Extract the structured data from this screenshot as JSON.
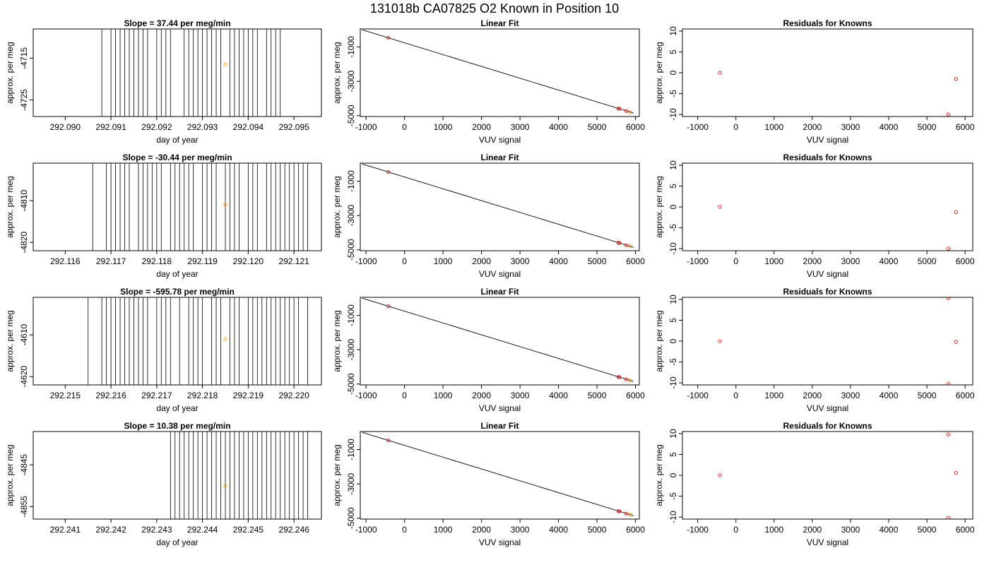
{
  "page_title": "131018b     CA07825   O2 Known in Position  10",
  "chart_data": [
    {
      "type": "line",
      "title": "Slope =  37.44  per meg/min",
      "xlabel": "day of year",
      "ylabel": "approx. per meg",
      "xlim": [
        292.0893,
        292.0956
      ],
      "ylim": [
        -4729,
        -4708
      ],
      "xticks": [
        "292.090",
        "292.091",
        "292.092",
        "292.093",
        "292.094",
        "292.095"
      ],
      "xtick_values": [
        292.09,
        292.091,
        292.092,
        292.093,
        292.094,
        292.095
      ],
      "yticks": [
        "-4725",
        "-4715"
      ],
      "ytick_values": [
        -4725,
        -4715
      ],
      "spikes_x": [
        292.0908,
        292.091,
        292.0911,
        292.0912,
        292.0913,
        292.0914,
        292.0915,
        292.0916,
        292.0917,
        292.0918,
        292.092,
        292.0921,
        292.0922,
        292.0923,
        292.0926,
        292.0927,
        292.0928,
        292.0929,
        292.093,
        292.0931,
        292.0932,
        292.0933,
        292.0934,
        292.0936,
        292.0937,
        292.0938,
        292.0939,
        292.094,
        292.0941,
        292.0942,
        292.0944,
        292.0945,
        292.0946,
        292.0947
      ],
      "points": [
        {
          "x": 292.0935,
          "y": -4716.5
        }
      ]
    },
    {
      "type": "scatter",
      "title": "Linear Fit",
      "xlabel": "VUV signal",
      "ylabel": "approx. per meg",
      "xlim": [
        -1150,
        6100
      ],
      "ylim": [
        -5050,
        50
      ],
      "xticks": [
        "-1000",
        "0",
        "1000",
        "2000",
        "3000",
        "4000",
        "5000",
        "6000"
      ],
      "xtick_values": [
        -1000,
        0,
        1000,
        2000,
        3000,
        4000,
        5000,
        6000
      ],
      "yticks": [
        "-5000",
        "-3000",
        "-1000"
      ],
      "ytick_values": [
        -5000,
        -3000,
        -1000
      ],
      "fit_line": [
        [
          -1100,
          0
        ],
        [
          5950,
          -4850
        ]
      ],
      "points": [
        {
          "x": -420,
          "y": -470
        },
        {
          "x": 5560,
          "y": -4590
        },
        {
          "x": 5580,
          "y": -4600
        },
        {
          "x": 5760,
          "y": -4730
        },
        {
          "x": 5860,
          "y": -4800
        }
      ]
    },
    {
      "type": "scatter",
      "title": "Residuals for Knowns",
      "xlabel": "VUV signal",
      "ylabel": "approx. per meg",
      "xlim": [
        -1400,
        6200
      ],
      "ylim": [
        -10.5,
        10.5
      ],
      "xticks": [
        "-1000",
        "0",
        "1000",
        "2000",
        "3000",
        "4000",
        "5000",
        "6000"
      ],
      "xtick_values": [
        -1000,
        0,
        1000,
        2000,
        3000,
        4000,
        5000,
        6000
      ],
      "yticks": [
        "-10",
        "-5",
        "0",
        "5",
        "10"
      ],
      "ytick_values": [
        -10,
        -5,
        0,
        5,
        10
      ],
      "points": [
        {
          "x": -420,
          "y": 0
        },
        {
          "x": 5560,
          "y": -10
        },
        {
          "x": 5760,
          "y": -1.5
        }
      ]
    },
    {
      "type": "line",
      "title": "Slope =  -30.44  per meg/min",
      "xlabel": "day of year",
      "ylabel": "approx. per meg",
      "xlim": [
        292.1153,
        292.1216
      ],
      "ylim": [
        -4822,
        -4801
      ],
      "xticks": [
        "292.116",
        "292.117",
        "292.118",
        "292.119",
        "292.120",
        "292.121"
      ],
      "xtick_values": [
        292.116,
        292.117,
        292.118,
        292.119,
        292.12,
        292.121
      ],
      "yticks": [
        "-4820",
        "-4810"
      ],
      "ytick_values": [
        -4820,
        -4810
      ],
      "spikes_x": [
        292.1166,
        292.1169,
        292.117,
        292.1171,
        292.1172,
        292.1173,
        292.1174,
        292.1176,
        292.1177,
        292.1178,
        292.1179,
        292.118,
        292.1181,
        292.1183,
        292.1184,
        292.1185,
        292.1186,
        292.1187,
        292.1188,
        292.119,
        292.1191,
        292.1192,
        292.1193,
        292.1195,
        292.1196,
        292.1197,
        292.1198,
        292.12,
        292.1201,
        292.1202,
        292.1204,
        292.1205,
        292.1206,
        292.1207,
        292.1208,
        292.1209,
        292.121,
        292.1211,
        292.1212,
        292.1213
      ],
      "points": [
        {
          "x": 292.1195,
          "y": -4811
        }
      ]
    },
    {
      "type": "scatter",
      "title": "Linear Fit",
      "xlabel": "VUV signal",
      "ylabel": "approx. per meg",
      "xlim": [
        -1150,
        6100
      ],
      "ylim": [
        -5050,
        50
      ],
      "xticks": [
        "-1000",
        "0",
        "1000",
        "2000",
        "3000",
        "4000",
        "5000",
        "6000"
      ],
      "xtick_values": [
        -1000,
        0,
        1000,
        2000,
        3000,
        4000,
        5000,
        6000
      ],
      "yticks": [
        "-5000",
        "-3000",
        "-1000"
      ],
      "ytick_values": [
        -5000,
        -3000,
        -1000
      ],
      "fit_line": [
        [
          -1100,
          0
        ],
        [
          5950,
          -4850
        ]
      ],
      "points": [
        {
          "x": -420,
          "y": -470
        },
        {
          "x": 5560,
          "y": -4590
        },
        {
          "x": 5580,
          "y": -4600
        },
        {
          "x": 5760,
          "y": -4730
        },
        {
          "x": 5860,
          "y": -4800
        }
      ]
    },
    {
      "type": "scatter",
      "title": "Residuals for Knowns",
      "xlabel": "VUV signal",
      "ylabel": "approx. per meg",
      "xlim": [
        -1400,
        6200
      ],
      "ylim": [
        -10.5,
        10.5
      ],
      "xticks": [
        "-1000",
        "0",
        "1000",
        "2000",
        "3000",
        "4000",
        "5000",
        "6000"
      ],
      "xtick_values": [
        -1000,
        0,
        1000,
        2000,
        3000,
        4000,
        5000,
        6000
      ],
      "yticks": [
        "-10",
        "-5",
        "0",
        "5",
        "10"
      ],
      "ytick_values": [
        -10,
        -5,
        0,
        5,
        10
      ],
      "points": [
        {
          "x": -420,
          "y": 0
        },
        {
          "x": 5560,
          "y": -10
        },
        {
          "x": 5760,
          "y": -1.3
        }
      ]
    },
    {
      "type": "line",
      "title": "Slope =  -595.78  per meg/min",
      "xlabel": "day of year",
      "ylabel": "approx. per meg",
      "xlim": [
        292.2143,
        292.2206
      ],
      "ylim": [
        -4622,
        -4601
      ],
      "xticks": [
        "292.215",
        "292.216",
        "292.217",
        "292.218",
        "292.219",
        "292.220"
      ],
      "xtick_values": [
        292.215,
        292.216,
        292.217,
        292.218,
        292.219,
        292.22
      ],
      "yticks": [
        "-4620",
        "-4610"
      ],
      "ytick_values": [
        -4620,
        -4610
      ],
      "spikes_x": [
        292.2155,
        292.2158,
        292.2159,
        292.216,
        292.2161,
        292.2162,
        292.2163,
        292.2164,
        292.2165,
        292.2166,
        292.2167,
        292.2168,
        292.217,
        292.2171,
        292.2172,
        292.2173,
        292.2175,
        292.2177,
        292.2178,
        292.2179,
        292.218,
        292.2182,
        292.2183,
        292.2184,
        292.2186,
        292.2187,
        292.2188,
        292.219,
        292.2191,
        292.2192,
        292.2193,
        292.2194,
        292.2195,
        292.2196,
        292.2197,
        292.2198,
        292.2199,
        292.22,
        292.2201,
        292.2203
      ],
      "points": [
        {
          "x": 292.2185,
          "y": -4611
        }
      ]
    },
    {
      "type": "scatter",
      "title": "Linear Fit",
      "xlabel": "VUV signal",
      "ylabel": "approx. per meg",
      "xlim": [
        -1150,
        6100
      ],
      "ylim": [
        -5050,
        50
      ],
      "xticks": [
        "-1000",
        "0",
        "1000",
        "2000",
        "3000",
        "4000",
        "5000",
        "6000"
      ],
      "xtick_values": [
        -1000,
        0,
        1000,
        2000,
        3000,
        4000,
        5000,
        6000
      ],
      "yticks": [
        "-5000",
        "-3000",
        "-1000"
      ],
      "ytick_values": [
        -5000,
        -3000,
        -1000
      ],
      "fit_line": [
        [
          -1100,
          0
        ],
        [
          5950,
          -4850
        ]
      ],
      "points": [
        {
          "x": -420,
          "y": -470
        },
        {
          "x": 5560,
          "y": -4590
        },
        {
          "x": 5580,
          "y": -4600
        },
        {
          "x": 5760,
          "y": -4730
        },
        {
          "x": 5860,
          "y": -4800
        }
      ]
    },
    {
      "type": "scatter",
      "title": "Residuals for Knowns",
      "xlabel": "VUV signal",
      "ylabel": "approx. per meg",
      "xlim": [
        -1400,
        6200
      ],
      "ylim": [
        -10.5,
        10.5
      ],
      "xticks": [
        "-1000",
        "0",
        "1000",
        "2000",
        "3000",
        "4000",
        "5000",
        "6000"
      ],
      "xtick_values": [
        -1000,
        0,
        1000,
        2000,
        3000,
        4000,
        5000,
        6000
      ],
      "yticks": [
        "-10",
        "-5",
        "0",
        "5",
        "10"
      ],
      "ytick_values": [
        -10,
        -5,
        0,
        5,
        10
      ],
      "points": [
        {
          "x": -420,
          "y": 0
        },
        {
          "x": 5560,
          "y": 10.3
        },
        {
          "x": 5560,
          "y": -10.3
        },
        {
          "x": 5760,
          "y": -0.2
        }
      ]
    },
    {
      "type": "line",
      "title": "Slope =  10.38  per meg/min",
      "xlabel": "day of year",
      "ylabel": "approx. per meg",
      "xlim": [
        292.2403,
        292.2466
      ],
      "ylim": [
        -4858,
        -4837
      ],
      "xticks": [
        "292.241",
        "292.242",
        "292.243",
        "292.244",
        "292.245",
        "292.246"
      ],
      "xtick_values": [
        292.241,
        292.242,
        292.243,
        292.244,
        292.245,
        292.246
      ],
      "yticks": [
        "-4855",
        "-4845"
      ],
      "ytick_values": [
        -4855,
        -4845
      ],
      "spikes_x": [
        292.2433,
        292.2434,
        292.2435,
        292.2436,
        292.2437,
        292.2438,
        292.2439,
        292.244,
        292.2441,
        292.2442,
        292.2443,
        292.2444,
        292.2445,
        292.2446,
        292.2447,
        292.2448,
        292.2449,
        292.245,
        292.2451,
        292.2452,
        292.2453,
        292.2454,
        292.2455,
        292.2456,
        292.2457,
        292.2458,
        292.2459,
        292.246,
        292.2461,
        292.2462,
        292.2463
      ],
      "points": [
        {
          "x": 292.2445,
          "y": -4850
        }
      ]
    },
    {
      "type": "scatter",
      "title": "Linear Fit",
      "xlabel": "VUV signal",
      "ylabel": "approx. per meg",
      "xlim": [
        -1150,
        6100
      ],
      "ylim": [
        -5050,
        50
      ],
      "xticks": [
        "-1000",
        "0",
        "1000",
        "2000",
        "3000",
        "4000",
        "5000",
        "6000"
      ],
      "xtick_values": [
        -1000,
        0,
        1000,
        2000,
        3000,
        4000,
        5000,
        6000
      ],
      "yticks": [
        "-5000",
        "-3000",
        "-1000"
      ],
      "ytick_values": [
        -5000,
        -3000,
        -1000
      ],
      "fit_line": [
        [
          -1100,
          0
        ],
        [
          5950,
          -4850
        ]
      ],
      "points": [
        {
          "x": -420,
          "y": -470
        },
        {
          "x": 5560,
          "y": -4590
        },
        {
          "x": 5580,
          "y": -4600
        },
        {
          "x": 5760,
          "y": -4730
        },
        {
          "x": 5860,
          "y": -4800
        }
      ]
    },
    {
      "type": "scatter",
      "title": "Residuals for Knowns",
      "xlabel": "VUV signal",
      "ylabel": "approx. per meg",
      "xlim": [
        -1400,
        6200
      ],
      "ylim": [
        -10.5,
        10.5
      ],
      "xticks": [
        "-1000",
        "0",
        "1000",
        "2000",
        "3000",
        "4000",
        "5000",
        "6000"
      ],
      "xtick_values": [
        -1000,
        0,
        1000,
        2000,
        3000,
        4000,
        5000,
        6000
      ],
      "yticks": [
        "-10",
        "-5",
        "0",
        "5",
        "10"
      ],
      "ytick_values": [
        -10,
        -5,
        0,
        5,
        10
      ],
      "points": [
        {
          "x": -420,
          "y": 0
        },
        {
          "x": 5560,
          "y": 9.8
        },
        {
          "x": 5560,
          "y": -10.2
        },
        {
          "x": 5760,
          "y": 0.6
        }
      ]
    }
  ],
  "colors": {
    "series_line": "#000000",
    "fit_line": "#000000",
    "point_red": "#dd1111",
    "point_orange": "#ff9900",
    "axis": "#000000"
  }
}
